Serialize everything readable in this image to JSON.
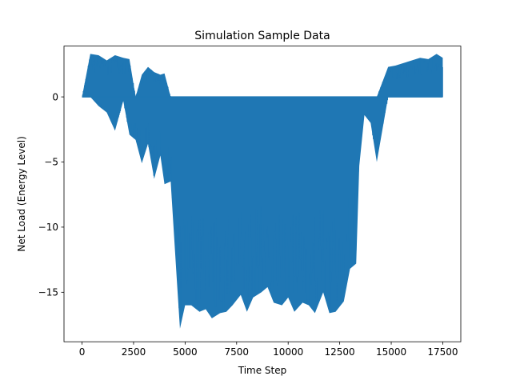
{
  "chart_data": {
    "type": "line",
    "title": "Simulation Sample Data",
    "xlabel": "Time Step",
    "ylabel": "Net Load (Energy Level)",
    "xlim": [
      -875,
      18375
    ],
    "ylim": [
      -18.8,
      3.9
    ],
    "xticks": [
      0,
      2500,
      5000,
      7500,
      10000,
      12500,
      15000,
      17500
    ],
    "xtick_labels": [
      "0",
      "2500",
      "5000",
      "7500",
      "10000",
      "12500",
      "15000",
      "17500"
    ],
    "yticks": [
      0,
      -5,
      -10,
      -15
    ],
    "ytick_labels": [
      "0",
      "−5",
      "−10",
      "−15"
    ],
    "grid": false,
    "series": [
      {
        "color": "#1f77b4",
        "x": [
          0,
          400,
          800,
          1200,
          1600,
          2000,
          2300,
          2600,
          2900,
          3200,
          3500,
          3800,
          4000,
          4300,
          4600,
          4750,
          5000,
          5300,
          5700,
          6000,
          6300,
          6700,
          7000,
          7300,
          7700,
          8000,
          8300,
          8700,
          9000,
          9300,
          9700,
          10000,
          10300,
          10700,
          11000,
          11300,
          11700,
          12000,
          12300,
          12700,
          13000,
          13300,
          13450,
          13700,
          14000,
          14300,
          14850,
          15200,
          15600,
          16000,
          16400,
          16800,
          17200,
          17500
        ],
        "envelope_max": [
          0.0,
          3.3,
          3.2,
          2.8,
          3.2,
          3.0,
          2.9,
          0.0,
          1.7,
          2.3,
          1.9,
          1.7,
          1.8,
          0.0,
          0.0,
          0.0,
          0.0,
          0.0,
          0.0,
          0.0,
          0.0,
          0.0,
          0.0,
          0.0,
          0.0,
          0.0,
          0.0,
          0.0,
          0.0,
          0.0,
          0.0,
          0.0,
          0.0,
          0.0,
          0.0,
          0.0,
          0.0,
          0.0,
          0.0,
          0.0,
          0.0,
          0.0,
          0.0,
          0.0,
          0.0,
          0.0,
          2.3,
          2.4,
          2.6,
          2.8,
          3.0,
          2.9,
          3.3,
          3.0
        ],
        "envelope_min": [
          0.0,
          0.0,
          -0.7,
          -1.2,
          -2.6,
          -0.3,
          -2.9,
          -3.3,
          -5.1,
          -3.6,
          -6.3,
          -4.5,
          -6.7,
          -6.5,
          -14.1,
          -17.8,
          -16.0,
          -16.0,
          -16.5,
          -16.3,
          -17.0,
          -16.6,
          -16.5,
          -16.0,
          -15.2,
          -16.5,
          -15.4,
          -15.0,
          -14.6,
          -15.8,
          -16.0,
          -15.4,
          -16.5,
          -15.8,
          -16.0,
          -16.6,
          -15.0,
          -16.6,
          -16.5,
          -15.7,
          -13.2,
          -12.8,
          -5.3,
          -1.4,
          -2.0,
          -5.0,
          0.0,
          0.0,
          0.0,
          0.0,
          0.0,
          0.0,
          0.0,
          0.0
        ]
      }
    ]
  }
}
